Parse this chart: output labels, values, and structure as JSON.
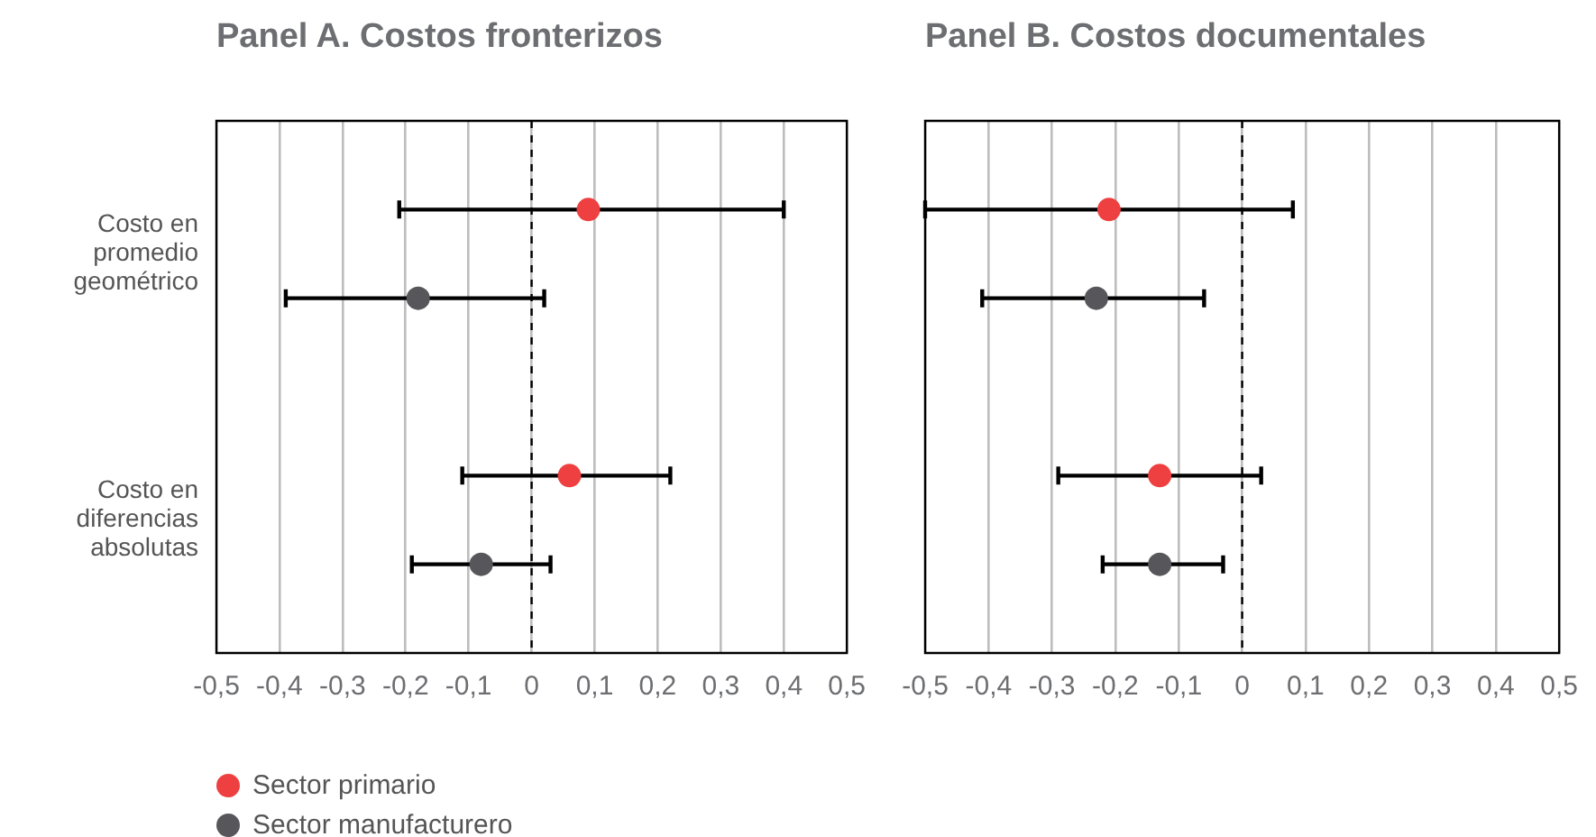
{
  "chart_data": [
    {
      "type": "scatter",
      "orientation": "horizontal",
      "title": "Panel A. Costos fronterizos",
      "categories": [
        "Costo en promedio geométrico",
        "Costo en diferencias absolutas"
      ],
      "series": [
        {
          "name": "Sector primario",
          "color": "#ee4040",
          "values": [
            0.09,
            0.06
          ],
          "errors": [
            [
              -0.21,
              0.4
            ],
            [
              -0.11,
              0.22
            ]
          ]
        },
        {
          "name": "Sector manufacturero",
          "color": "#57575b",
          "values": [
            -0.18,
            -0.08
          ],
          "errors": [
            [
              -0.39,
              0.02
            ],
            [
              -0.19,
              0.03
            ]
          ]
        }
      ],
      "xlim": [
        -0.5,
        0.5
      ],
      "xticks": [
        {
          "value": -0.5,
          "label": "-0,5"
        },
        {
          "value": -0.4,
          "label": "-0,4"
        },
        {
          "value": -0.3,
          "label": "-0,3"
        },
        {
          "value": -0.2,
          "label": "-0,2"
        },
        {
          "value": -0.1,
          "label": "-0,1"
        },
        0,
        {
          "value": 0.1,
          "label": "0,1"
        },
        {
          "value": 0.2,
          "label": "0,2"
        },
        {
          "value": 0.3,
          "label": "0,3"
        },
        {
          "value": 0.4,
          "label": "0,4"
        },
        {
          "value": 0.5,
          "label": "0,5"
        }
      ],
      "ref_lines": [
        {
          "axis": "x",
          "value": 0,
          "line_style": "dashed",
          "color": "#000000"
        }
      ],
      "grid": "x",
      "marker": "circle",
      "legend": "bottom"
    },
    {
      "type": "scatter",
      "orientation": "horizontal",
      "title": "Panel B. Costos documentales",
      "categories": [
        null,
        null
      ],
      "series": [
        {
          "color": "#ee4040",
          "values": [
            -0.21,
            -0.13
          ],
          "errors": [
            [
              -0.5,
              0.08
            ],
            [
              -0.29,
              0.03
            ]
          ]
        },
        {
          "color": "#57575b",
          "values": [
            -0.23,
            -0.13
          ],
          "errors": [
            [
              -0.41,
              -0.06
            ],
            [
              -0.22,
              -0.03
            ]
          ]
        }
      ],
      "xlim": [
        -0.5,
        0.5
      ],
      "xticks": [
        {
          "value": -0.5,
          "label": "-0,5"
        },
        {
          "value": -0.4,
          "label": "-0,4"
        },
        {
          "value": -0.3,
          "label": "-0,3"
        },
        {
          "value": -0.2,
          "label": "-0,2"
        },
        {
          "value": -0.1,
          "label": "-0,1"
        },
        0,
        {
          "value": 0.1,
          "label": "0,1"
        },
        {
          "value": 0.2,
          "label": "0,2"
        },
        {
          "value": 0.3,
          "label": "0,3"
        },
        {
          "value": 0.4,
          "label": "0,4"
        },
        {
          "value": 0.5,
          "label": "0,5"
        }
      ],
      "ref_lines": [
        {
          "axis": "x",
          "value": 0,
          "line_style": "dashed",
          "color": "#000000"
        }
      ],
      "grid": "x",
      "marker": "circle",
      "tick_labels": "x"
    }
  ]
}
